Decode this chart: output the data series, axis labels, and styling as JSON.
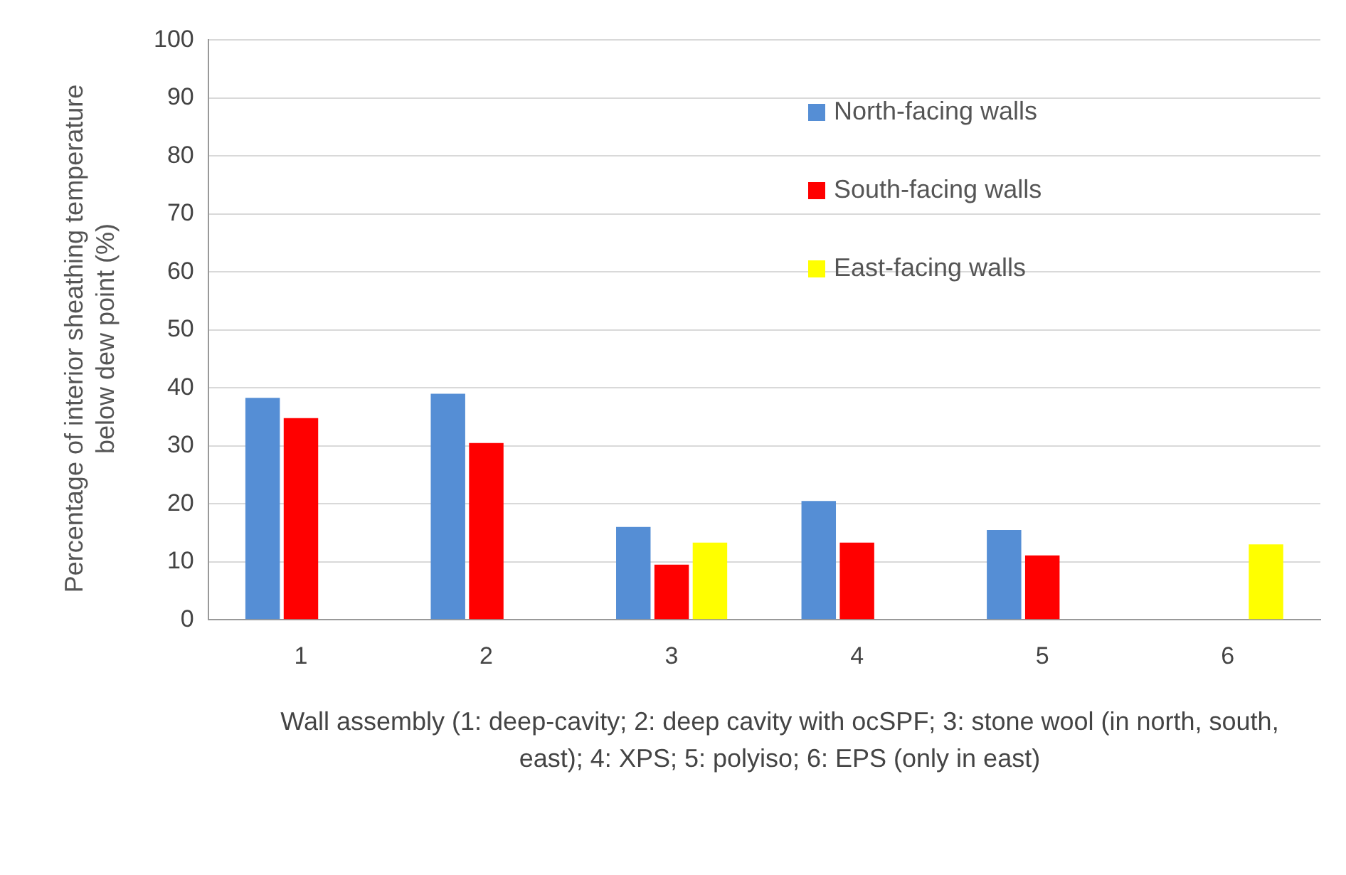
{
  "chart_data": {
    "type": "bar",
    "xlabel": "Wall assembly (1: deep-cavity; 2: deep cavity with ocSPF; 3: stone wool (in north, south, east); 4: XPS; 5: polyiso; 6: EPS (only in east)",
    "ylabel": "Percentage of interior sheathing temperature below dew point (%)",
    "categories": [
      "1",
      "2",
      "3",
      "4",
      "5",
      "6"
    ],
    "series": [
      {
        "name": "North-facing walls",
        "color": "#558ed5",
        "values": [
          38.3,
          39,
          16,
          20.5,
          15.5,
          null
        ]
      },
      {
        "name": "South-facing walls",
        "color": "#ff0000",
        "values": [
          34.8,
          30.5,
          9.5,
          13.3,
          11.1,
          null
        ]
      },
      {
        "name": "East-facing walls",
        "color": "#ffff00",
        "values": [
          null,
          null,
          13.3,
          null,
          null,
          13
        ]
      }
    ],
    "ylim": [
      0,
      100
    ],
    "yticks": [
      0,
      10,
      20,
      30,
      40,
      50,
      60,
      70,
      80,
      90,
      100
    ],
    "grid": "y",
    "legend": "top right"
  }
}
